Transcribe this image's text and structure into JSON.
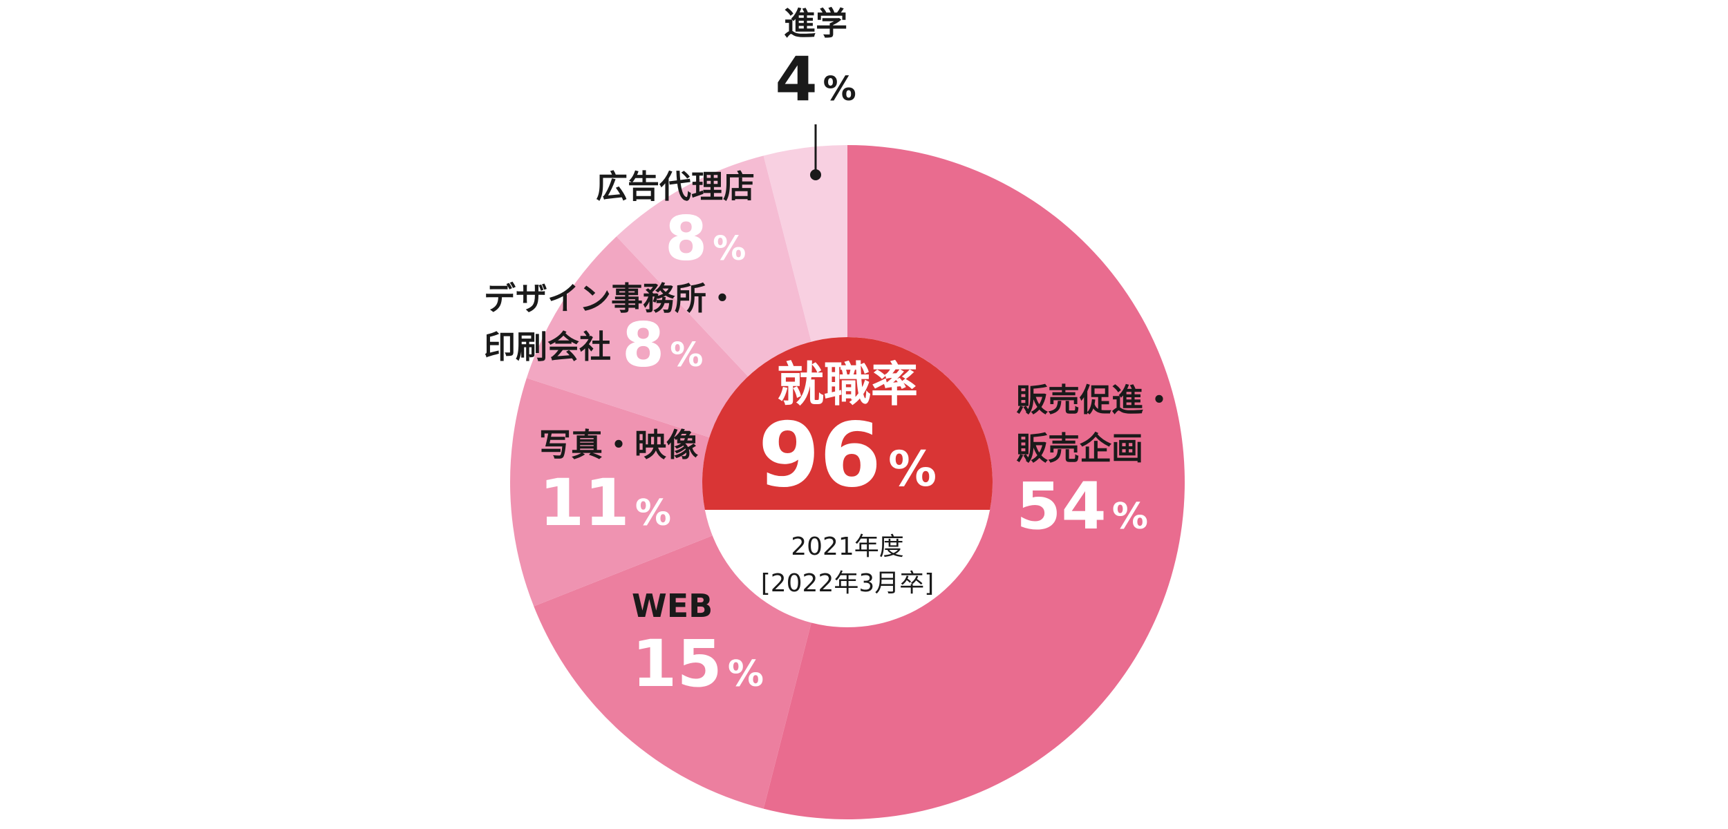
{
  "chart_data": {
    "type": "pie",
    "slices": [
      {
        "label": "販売促進・販売企画",
        "label_lines": [
          "販売促進・",
          "販売企画"
        ],
        "value": 54,
        "display": "54",
        "color": "#e96c8f",
        "value_color": "#ffffff"
      },
      {
        "label": "WEB",
        "label_lines": [
          "WEB"
        ],
        "value": 15,
        "display": "15",
        "color": "#ec7f9f",
        "value_color": "#ffffff"
      },
      {
        "label": "写真・映像",
        "label_lines": [
          "写真・映像"
        ],
        "value": 11,
        "display": "11",
        "color": "#ef93b1",
        "value_color": "#ffffff"
      },
      {
        "label": "デザイン事務所・印刷会社",
        "label_lines": [
          "デザイン事務所・",
          "印刷会社"
        ],
        "value": 8,
        "display": "8",
        "color": "#f2a7c2",
        "value_color": "#ffffff"
      },
      {
        "label": "広告代理店",
        "label_lines": [
          "広告代理店"
        ],
        "value": 8,
        "display": "8",
        "color": "#f5bcd3",
        "value_color": "#ffffff"
      },
      {
        "label": "進学",
        "label_lines": [
          "進学"
        ],
        "value": 4,
        "display": "4",
        "color": "#f8d0e1",
        "value_color": "#1a1a1a"
      }
    ],
    "percent_sign": "%",
    "center": {
      "title": "就職率",
      "value": "96",
      "year": "2021年度",
      "grad": "[2022年3月卒]",
      "top_color": "#d93535",
      "bottom_color": "#ffffff"
    }
  }
}
